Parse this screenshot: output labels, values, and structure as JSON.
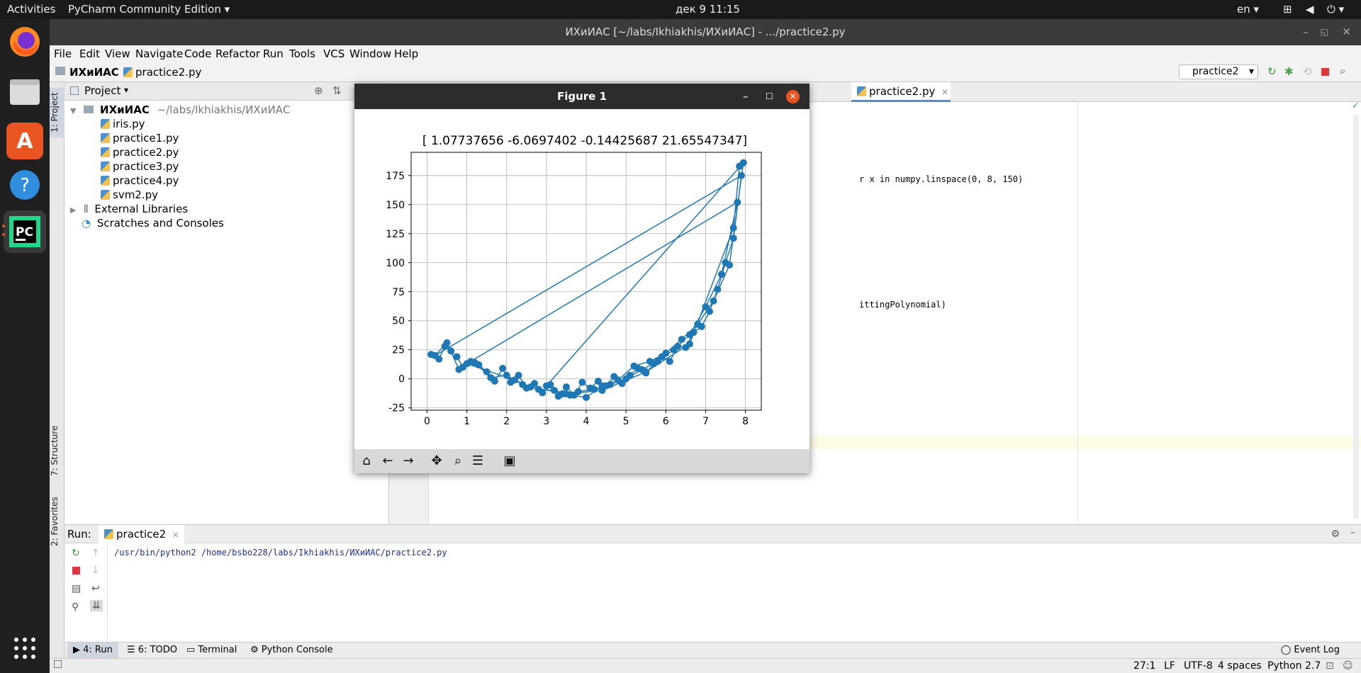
{
  "topbar": {
    "activities": "Activities",
    "app_menu": "PyCharm Community Edition",
    "clock": "дек 9  11:15",
    "lang": "en"
  },
  "ide": {
    "title": "ИХиИАС [~/labs/Ikhiakhis/ИХиИАС] - .../practice2.py",
    "menu": [
      "File",
      "Edit",
      "View",
      "Navigate",
      "Code",
      "Refactor",
      "Run",
      "Tools",
      "VCS",
      "Window",
      "Help"
    ],
    "breadcrumb": {
      "root": "ИХиИАС",
      "file": "practice2.py"
    },
    "run_config": "practice2",
    "project_panel": {
      "title": "Project",
      "root_name": "ИХиИАС",
      "root_path": "~/labs/Ikhiakhis/ИХиИАС",
      "files": [
        "iris.py",
        "practice1.py",
        "practice2.py",
        "practice3.py",
        "practice4.py",
        "svm2.py"
      ],
      "external_libraries": "External Libraries",
      "scratches": "Scratches and Consoles"
    },
    "side_tabs": {
      "project": "1: Project",
      "structure": "7: Structure",
      "favorites": "2: Favorites"
    },
    "editor": {
      "tab": "practice2.py",
      "code_line_1": "r x in numpy.linspace(0, 8, 150)",
      "code_line_2": "ittingPolynomial)"
    },
    "run_panel": {
      "label": "Run:",
      "tab": "practice2",
      "command": "/usr/bin/python2 /home/bsbo228/labs/Ikhiakhis/ИХиИАС/practice2.py"
    },
    "bottom_tabs": [
      "4: Run",
      "6: TODO",
      "Terminal",
      "Python Console"
    ],
    "event_log": "Event Log",
    "status": {
      "position": "27:1",
      "line_sep": "LF",
      "encoding": "UTF-8",
      "indent": "4 spaces",
      "interpreter": "Python 2.7"
    }
  },
  "figure": {
    "window_title": "Figure 1",
    "chart_data": {
      "type": "scatter",
      "title": "[ 1.07737656 -6.0697402  -0.14425687 21.65547347]",
      "xlabel": "",
      "ylabel": "",
      "xlim": [
        -0.4,
        8.4
      ],
      "ylim": [
        -27,
        195
      ],
      "xticks": [
        0,
        1,
        2,
        3,
        4,
        5,
        6,
        7,
        8
      ],
      "yticks": [
        -25,
        0,
        25,
        50,
        75,
        100,
        125,
        150,
        175
      ],
      "grid": true,
      "color": "#1f77b4",
      "series": [
        {
          "x": [
            0.1,
            0.3,
            0.45,
            0.6,
            0.75,
            0.9,
            1.1,
            1.3,
            1.5,
            1.7,
            1.9,
            2.1,
            2.3,
            2.5,
            2.7,
            2.9,
            3.1,
            3.3,
            3.5,
            3.7,
            3.9,
            4.1,
            4.3,
            4.5,
            4.7,
            4.9,
            5.1,
            5.3,
            5.5,
            5.7,
            5.9,
            6.1,
            6.3,
            6.5,
            6.7,
            6.9,
            7.1,
            7.3,
            7.5,
            7.7,
            7.9,
            0.2,
            0.5,
            0.8,
            1.2,
            1.6,
            2.0,
            2.4,
            2.8,
            3.2,
            3.6,
            4.0,
            4.4,
            4.8,
            5.2,
            5.6,
            6.0,
            6.4,
            6.8,
            7.2,
            7.6,
            7.95,
            3.0,
            3.4,
            3.8,
            4.2,
            4.6,
            5.0,
            5.4,
            5.8,
            6.2,
            6.6,
            7.0,
            7.4,
            7.8,
            1.0,
            2.2,
            2.6,
            3.5,
            4.4,
            5.5,
            6.6,
            7.7,
            7.85
          ],
          "y": [
            21,
            17,
            28,
            24,
            19,
            10,
            15,
            12,
            6,
            -2,
            9,
            -3,
            3,
            -8,
            -4,
            -12,
            -5,
            -15,
            -7,
            -14,
            -3,
            -8,
            -2,
            -6,
            2,
            -4,
            3,
            9,
            5,
            13,
            19,
            15,
            28,
            27,
            40,
            45,
            58,
            77,
            100,
            121,
            175,
            20,
            31,
            8,
            14,
            1,
            3,
            -5,
            -9,
            -10,
            -14,
            -16,
            -6,
            -1,
            11,
            15,
            22,
            34,
            47,
            67,
            98,
            186,
            -6,
            -13,
            -11,
            -9,
            -5,
            0,
            8,
            15,
            25,
            38,
            62,
            90,
            152,
            13,
            -1,
            -7,
            -13,
            -10,
            6,
            30,
            130,
            183
          ]
        }
      ]
    },
    "toolbar": [
      "home",
      "back",
      "forward",
      "pan",
      "zoom",
      "configure",
      "save"
    ]
  }
}
